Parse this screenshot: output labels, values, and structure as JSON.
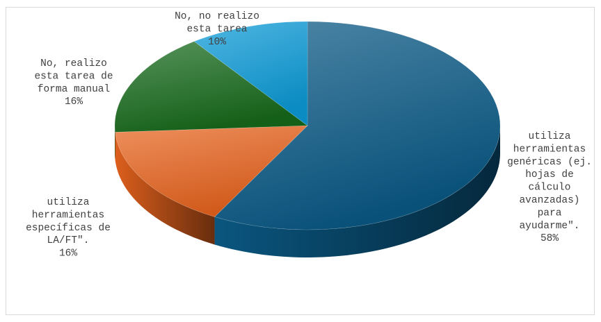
{
  "chart_data": {
    "type": "pie",
    "title": "",
    "slices": [
      {
        "label_lines": [
          "utiliza",
          "herramientas",
          "genéricas (ej.",
          "hojas de",
          "cálculo",
          "avanzadas)",
          "para",
          "ayudarme\"."
        ],
        "value": 58,
        "percent_label": "58%",
        "color": "#0a5a86"
      },
      {
        "label_lines": [
          "utiliza",
          "herramientas",
          "específicas de",
          "LA/FT\"."
        ],
        "value": 16,
        "percent_label": "16%",
        "color": "#e8641e"
      },
      {
        "label_lines": [
          "No, realizo",
          "esta tarea de",
          "forma manual"
        ],
        "value": 16,
        "percent_label": "16%",
        "color": "#176b1c"
      },
      {
        "label_lines": [
          "No, no realizo",
          "esta tarea"
        ],
        "value": 10,
        "percent_label": "10%",
        "color": "#0c9bd8"
      }
    ],
    "legend": "none",
    "style": "3d-pie"
  }
}
